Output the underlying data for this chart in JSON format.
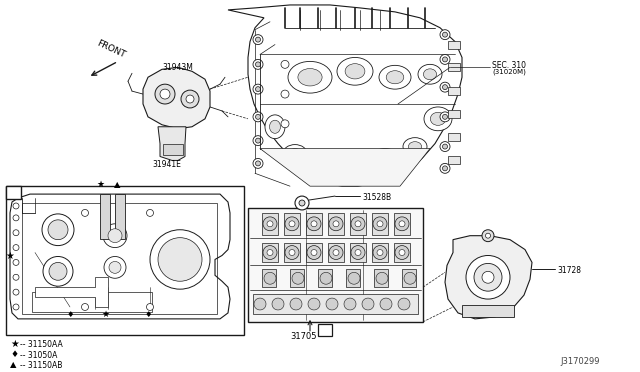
{
  "bg_color": "#ffffff",
  "line_color": "#1a1a1a",
  "fig_width": 6.4,
  "fig_height": 3.72,
  "dpi": 100,
  "labels": {
    "front": "FRONT",
    "sec310_line1": "SEC. 310",
    "sec310_line2": "(31020M)",
    "part_31943M": "31943M",
    "part_31941E": "31941E",
    "part_31528B": "31528B",
    "part_31705": "31705",
    "part_31728": "31728",
    "box_A": "A",
    "diagram_id": "J3170299",
    "leg1": "★ — 31150AA",
    "leg2": "● — 31050A",
    "leg3": "▲ — 31150AB"
  }
}
